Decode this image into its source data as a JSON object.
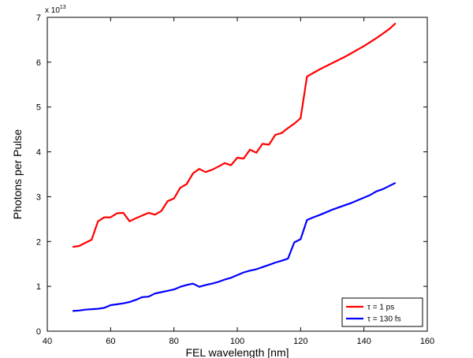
{
  "chart_data": {
    "type": "line",
    "xlabel": "FEL wavelength [nm]",
    "ylabel": "Photons per Pulse",
    "y_multiplier": {
      "base": "x 10",
      "exponent": "13"
    },
    "xlim": [
      40,
      160
    ],
    "ylim": [
      0,
      7
    ],
    "x_ticks": [
      40,
      60,
      80,
      100,
      120,
      140,
      160
    ],
    "y_ticks": [
      0,
      1,
      2,
      3,
      4,
      5,
      6,
      7
    ],
    "grid": false,
    "legend_position": "bottom-right",
    "series": [
      {
        "name": "τ = 1 ps",
        "color": "#ff0000",
        "x": [
          48,
          50,
          52,
          54,
          56,
          58,
          60,
          62,
          64,
          66,
          68,
          70,
          72,
          74,
          76,
          78,
          80,
          82,
          84,
          86,
          88,
          90,
          92,
          94,
          96,
          98,
          100,
          102,
          104,
          106,
          108,
          110,
          112,
          114,
          116,
          118,
          120,
          122,
          124,
          126,
          128,
          130,
          132,
          134,
          136,
          138,
          140,
          142,
          144,
          146,
          148,
          150
        ],
        "values": [
          1.88,
          1.9,
          1.97,
          2.04,
          2.45,
          2.54,
          2.54,
          2.63,
          2.64,
          2.45,
          2.52,
          2.58,
          2.64,
          2.6,
          2.68,
          2.9,
          2.96,
          3.2,
          3.28,
          3.52,
          3.62,
          3.55,
          3.6,
          3.67,
          3.75,
          3.7,
          3.87,
          3.85,
          4.05,
          3.98,
          4.18,
          4.16,
          4.38,
          4.42,
          4.53,
          4.63,
          4.75,
          5.68,
          5.76,
          5.84,
          5.91,
          5.98,
          6.05,
          6.12,
          6.2,
          6.28,
          6.36,
          6.45,
          6.54,
          6.64,
          6.74,
          6.87
        ]
      },
      {
        "name": "τ = 130 fs",
        "color": "#0000ff",
        "x": [
          48,
          50,
          52,
          54,
          56,
          58,
          60,
          62,
          64,
          66,
          68,
          70,
          72,
          74,
          76,
          78,
          80,
          82,
          84,
          86,
          88,
          90,
          92,
          94,
          96,
          98,
          100,
          102,
          104,
          106,
          108,
          110,
          112,
          114,
          116,
          118,
          120,
          122,
          124,
          126,
          128,
          130,
          132,
          134,
          136,
          138,
          140,
          142,
          144,
          146,
          148,
          150
        ],
        "values": [
          0.45,
          0.46,
          0.48,
          0.49,
          0.5,
          0.52,
          0.58,
          0.6,
          0.62,
          0.65,
          0.7,
          0.76,
          0.77,
          0.84,
          0.87,
          0.9,
          0.93,
          0.99,
          1.03,
          1.06,
          0.99,
          1.03,
          1.06,
          1.1,
          1.15,
          1.19,
          1.25,
          1.31,
          1.35,
          1.38,
          1.43,
          1.48,
          1.53,
          1.57,
          1.62,
          1.98,
          2.05,
          2.48,
          2.54,
          2.59,
          2.65,
          2.71,
          2.76,
          2.81,
          2.86,
          2.92,
          2.98,
          3.04,
          3.12,
          3.17,
          3.24,
          3.31
        ]
      }
    ]
  }
}
